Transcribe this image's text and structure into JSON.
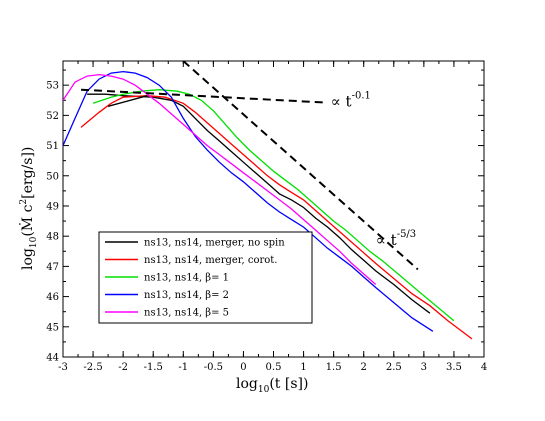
{
  "chart_data": {
    "type": "line",
    "title": "",
    "xlabel": {
      "base": "log",
      "sub": "10",
      "rest": "(t [s])"
    },
    "ylabel": {
      "base": "log",
      "sub": "10",
      "rest": "(Ṁ c",
      "sup": "2",
      "tail": "[erg/s])"
    },
    "xlim": [
      -3,
      4
    ],
    "ylim": [
      44,
      53.8
    ],
    "x_ticks": [
      -3,
      -2.5,
      -2,
      -1.5,
      -1,
      -0.5,
      0,
      0.5,
      1,
      1.5,
      2,
      2.5,
      3,
      3.5,
      4
    ],
    "x_tick_labels": [
      "-3",
      "-2.5",
      "-2",
      "-1.5",
      "-1",
      "-0.5",
      "0",
      "0.5",
      "1",
      "1.5",
      "2",
      "2.5",
      "3",
      "3.5",
      "4"
    ],
    "y_ticks": [
      44,
      45,
      46,
      47,
      48,
      49,
      50,
      51,
      52,
      53
    ],
    "y_tick_labels": [
      "44",
      "45",
      "46",
      "47",
      "48",
      "49",
      "50",
      "51",
      "52",
      "53"
    ],
    "legend_position": "left-middle",
    "series": [
      {
        "name": "ns13, ns14, merger, no spin",
        "color": "#000000",
        "x": [
          -2.6,
          -2.3,
          -2.0,
          -1.5,
          -1.2,
          -1.0,
          -0.8,
          -0.6,
          -0.4,
          -0.2,
          0.0,
          0.2,
          0.4,
          0.6,
          0.8,
          1.0,
          1.2,
          1.4,
          1.6,
          1.8,
          2.0,
          2.2,
          2.5,
          2.8,
          3.1
        ],
        "y": [
          52.7,
          52.7,
          52.65,
          52.6,
          52.5,
          52.3,
          51.9,
          51.5,
          51.15,
          50.8,
          50.45,
          50.1,
          49.75,
          49.4,
          49.2,
          48.95,
          48.6,
          48.3,
          47.95,
          47.55,
          47.2,
          46.85,
          46.4,
          45.9,
          45.45
        ]
      },
      {
        "name": "ns13, ns14, merger, corot.",
        "color": "#ff0000",
        "x": [
          -2.7,
          -2.4,
          -2.2,
          -2.0,
          -1.6,
          -1.3,
          -1.0,
          -0.8,
          -0.6,
          -0.4,
          -0.2,
          0.0,
          0.2,
          0.4,
          0.6,
          0.8,
          1.0,
          1.2,
          1.4,
          1.6,
          1.8,
          2.0,
          2.2,
          2.5,
          2.8,
          3.1,
          3.4,
          3.8
        ],
        "y": [
          51.6,
          52.1,
          52.4,
          52.6,
          52.65,
          52.6,
          52.4,
          52.1,
          51.75,
          51.4,
          51.05,
          50.7,
          50.35,
          50.0,
          49.7,
          49.45,
          49.2,
          48.85,
          48.5,
          48.15,
          47.8,
          47.45,
          47.1,
          46.6,
          46.1,
          45.7,
          45.2,
          44.6
        ]
      },
      {
        "name": "ns13, ns14, β= 1",
        "color": "#00e000",
        "x": [
          -2.5,
          -2.2,
          -2.0,
          -1.7,
          -1.4,
          -1.1,
          -0.9,
          -0.7,
          -0.5,
          -0.3,
          -0.1,
          0.1,
          0.3,
          0.5,
          0.7,
          0.9,
          1.1,
          1.3,
          1.5,
          1.7,
          1.9,
          2.1,
          2.3,
          2.6,
          2.9,
          3.2,
          3.5
        ],
        "y": [
          52.4,
          52.6,
          52.7,
          52.8,
          52.85,
          52.8,
          52.7,
          52.5,
          52.15,
          51.7,
          51.25,
          50.85,
          50.5,
          50.15,
          49.85,
          49.55,
          49.2,
          48.85,
          48.5,
          48.2,
          47.85,
          47.5,
          47.2,
          46.7,
          46.2,
          45.7,
          45.2
        ]
      },
      {
        "name": "ns13, ns14, β= 2",
        "color": "#0000ff",
        "x": [
          -3.0,
          -2.8,
          -2.6,
          -2.4,
          -2.2,
          -2.0,
          -1.8,
          -1.6,
          -1.4,
          -1.2,
          -1.0,
          -0.8,
          -0.6,
          -0.4,
          -0.2,
          0.0,
          0.2,
          0.4,
          0.6,
          0.8,
          1.0,
          1.2,
          1.4,
          1.6,
          1.8,
          2.0,
          2.2,
          2.5,
          2.8,
          3.15
        ],
        "y": [
          51.0,
          51.9,
          52.8,
          53.2,
          53.4,
          53.45,
          53.4,
          53.25,
          53.0,
          52.6,
          51.9,
          51.3,
          50.85,
          50.45,
          50.1,
          49.8,
          49.45,
          49.1,
          48.8,
          48.55,
          48.3,
          47.95,
          47.6,
          47.3,
          47.0,
          46.65,
          46.3,
          45.8,
          45.3,
          44.85
        ]
      },
      {
        "name": "ns13, ns14, β= 5",
        "color": "#ff00ff",
        "x": [
          -3.0,
          -2.8,
          -2.6,
          -2.4,
          -2.2,
          -2.0,
          -1.8,
          -1.6,
          -1.4,
          -1.2,
          -1.0,
          -0.8,
          -0.6,
          -0.4,
          -0.2,
          0.0,
          0.2,
          0.4,
          0.6,
          0.8,
          1.0,
          1.2,
          1.4,
          1.6,
          1.8,
          2.0,
          2.2
        ],
        "y": [
          52.5,
          53.1,
          53.3,
          53.35,
          53.3,
          53.2,
          53.0,
          52.7,
          52.4,
          52.05,
          51.7,
          51.35,
          51.0,
          50.7,
          50.4,
          50.1,
          49.8,
          49.5,
          49.2,
          48.9,
          48.55,
          48.2,
          47.85,
          47.5,
          47.1,
          46.75,
          46.4
        ]
      }
    ],
    "reference_lines": [
      {
        "label_base": "∝ t",
        "label_exp": "-0.1",
        "x": [
          -2.7,
          1.4
        ],
        "y": [
          52.85,
          52.42
        ],
        "dash": true,
        "label_at": [
          1.45,
          52.3
        ]
      },
      {
        "label_base": "∝ t",
        "label_exp": "-5/3",
        "x": [
          -1.0,
          2.9
        ],
        "y": [
          53.8,
          46.9
        ],
        "dash": true,
        "label_at": [
          2.2,
          47.7
        ]
      },
      {
        "x": [
          -2.25,
          -1.6
        ],
        "y": [
          52.3,
          52.65
        ],
        "dash": false
      }
    ]
  }
}
